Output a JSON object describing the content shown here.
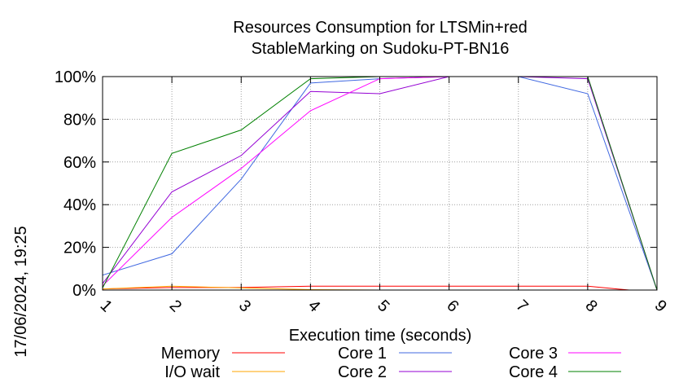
{
  "chart_data": {
    "type": "line",
    "title_lines": [
      "Resources Consumption for LTSMin+red",
      "StableMarking on Sudoku-PT-BN16"
    ],
    "xlabel": "Execution time (seconds)",
    "ylabel": "",
    "side_label": "17/06/2024, 19:25",
    "x_ticks": [
      "1",
      "2",
      "3",
      "4",
      "5",
      "6",
      "7",
      "8",
      "9"
    ],
    "y_ticks": [
      "0%",
      "20%",
      "40%",
      "60%",
      "80%",
      "100%"
    ],
    "xlim": [
      1,
      9
    ],
    "ylim": [
      0,
      100
    ],
    "grid": true,
    "legend_position": "bottom",
    "series": [
      {
        "name": "Memory",
        "color": "#ff0000",
        "x": [
          1,
          2,
          3,
          4,
          5,
          6,
          7,
          8,
          8.6,
          9
        ],
        "values": [
          0.5,
          1.2,
          1.2,
          1.8,
          1.8,
          1.8,
          1.8,
          1.8,
          0,
          0
        ]
      },
      {
        "name": "I/O wait",
        "color": "#ffa500",
        "x": [
          1,
          2,
          3,
          4,
          5,
          6,
          7,
          8,
          9
        ],
        "values": [
          0.5,
          1.8,
          1.0,
          0.2,
          0,
          0,
          0,
          0,
          0
        ]
      },
      {
        "name": "Core 1",
        "color": "#4169e1",
        "x": [
          1,
          2,
          3,
          4,
          5,
          6,
          7,
          8,
          9
        ],
        "values": [
          7,
          17,
          52,
          97,
          99,
          100,
          100,
          92,
          0
        ]
      },
      {
        "name": "Core 2",
        "color": "#9400d3",
        "x": [
          1,
          2,
          3,
          4,
          5,
          6,
          7,
          8,
          9
        ],
        "values": [
          3,
          46,
          63,
          93,
          92,
          100,
          100,
          99,
          0
        ]
      },
      {
        "name": "Core 3",
        "color": "#ff00ff",
        "x": [
          1,
          2,
          3,
          4,
          5,
          6,
          7,
          8,
          9
        ],
        "values": [
          2,
          34,
          57,
          84,
          99,
          100,
          100,
          100,
          0
        ]
      },
      {
        "name": "Core 4",
        "color": "#008000",
        "x": [
          1,
          2,
          3,
          4,
          5,
          6,
          7,
          8,
          9
        ],
        "values": [
          1,
          64,
          75,
          99,
          100,
          100,
          100,
          100,
          0
        ]
      }
    ]
  }
}
